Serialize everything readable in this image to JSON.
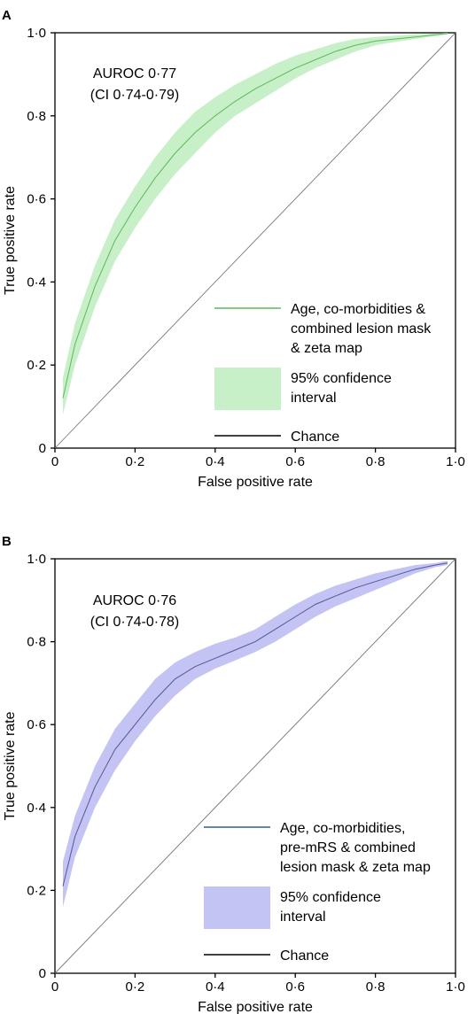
{
  "panels": [
    {
      "letter": "A"
    },
    {
      "letter": "B"
    }
  ],
  "chart_data": [
    {
      "type": "line",
      "panel": "A",
      "xlabel": "False positive rate",
      "ylabel": "True positive rate",
      "xlim": [
        0,
        1
      ],
      "ylim": [
        0,
        1
      ],
      "xticks": [
        "0",
        "0·2",
        "0·4",
        "0·6",
        "0·8",
        "1·0"
      ],
      "yticks": [
        "0",
        "0·2",
        "0·4",
        "0·6",
        "0·8",
        "1·0"
      ],
      "grid": false,
      "legend_position": "bottom-right",
      "annotation": [
        "AUROC 0·77",
        "(CI 0·74-0·79)"
      ],
      "series": [
        {
          "name": "Age, co-morbidities & combined lesion mask & zeta map",
          "color": "#5cb85c",
          "band_color": "#c8f0c8",
          "x": [
            0.02,
            0.05,
            0.1,
            0.15,
            0.2,
            0.25,
            0.3,
            0.35,
            0.4,
            0.45,
            0.5,
            0.55,
            0.6,
            0.65,
            0.7,
            0.75,
            0.8,
            0.85,
            0.9,
            0.95,
            0.98
          ],
          "y": [
            0.12,
            0.25,
            0.39,
            0.5,
            0.58,
            0.65,
            0.71,
            0.76,
            0.8,
            0.835,
            0.865,
            0.89,
            0.915,
            0.935,
            0.955,
            0.97,
            0.98,
            0.985,
            0.99,
            0.995,
            0.998
          ],
          "ci_lower": [
            0.08,
            0.2,
            0.34,
            0.45,
            0.53,
            0.6,
            0.66,
            0.71,
            0.76,
            0.8,
            0.83,
            0.86,
            0.89,
            0.915,
            0.935,
            0.955,
            0.97,
            0.978,
            0.985,
            0.992,
            0.996
          ],
          "ci_upper": [
            0.17,
            0.3,
            0.44,
            0.55,
            0.63,
            0.7,
            0.76,
            0.81,
            0.845,
            0.875,
            0.9,
            0.925,
            0.945,
            0.96,
            0.975,
            0.985,
            0.99,
            0.993,
            0.996,
            0.998,
            1.0
          ]
        },
        {
          "name": "Chance",
          "color": "#777777",
          "x": [
            0,
            1
          ],
          "y": [
            0,
            1
          ]
        }
      ],
      "legend": [
        {
          "kind": "line",
          "lines": [
            "Age, co-morbidities &",
            "combined lesion mask",
            "& zeta map"
          ],
          "color": "#5cb85c"
        },
        {
          "kind": "band",
          "lines": [
            "95% confidence",
            "interval"
          ],
          "color": "#c8f0c8"
        },
        {
          "kind": "line",
          "lines": [
            "Chance"
          ],
          "color": "#000000"
        }
      ]
    },
    {
      "type": "line",
      "panel": "B",
      "xlabel": "False positive rate",
      "ylabel": "True positive rate",
      "xlim": [
        0,
        1
      ],
      "ylim": [
        0,
        1
      ],
      "xticks": [
        "0",
        "0·2",
        "0·4",
        "0·6",
        "0·8",
        "1·0"
      ],
      "yticks": [
        "0",
        "0·2",
        "0·4",
        "0·6",
        "0·8",
        "1·0"
      ],
      "grid": false,
      "legend_position": "bottom-right",
      "annotation": [
        "AUROC 0·76",
        "(CI 0·74-0·78)"
      ],
      "series": [
        {
          "name": "Age, co-morbidities, pre-mRS & combined lesion mask & zeta map",
          "color": "#555599",
          "band_color": "#c4c4f4",
          "x": [
            0.02,
            0.05,
            0.1,
            0.15,
            0.2,
            0.25,
            0.3,
            0.35,
            0.4,
            0.45,
            0.5,
            0.55,
            0.6,
            0.65,
            0.7,
            0.75,
            0.8,
            0.85,
            0.9,
            0.95,
            0.98
          ],
          "y": [
            0.21,
            0.33,
            0.45,
            0.54,
            0.6,
            0.66,
            0.71,
            0.74,
            0.76,
            0.78,
            0.8,
            0.83,
            0.86,
            0.89,
            0.91,
            0.93,
            0.945,
            0.96,
            0.975,
            0.985,
            0.99
          ],
          "ci_lower": [
            0.16,
            0.28,
            0.4,
            0.49,
            0.56,
            0.62,
            0.67,
            0.71,
            0.735,
            0.755,
            0.775,
            0.8,
            0.83,
            0.86,
            0.885,
            0.905,
            0.925,
            0.945,
            0.965,
            0.98,
            0.985
          ],
          "ci_upper": [
            0.27,
            0.38,
            0.5,
            0.59,
            0.65,
            0.71,
            0.75,
            0.775,
            0.795,
            0.81,
            0.83,
            0.86,
            0.89,
            0.915,
            0.935,
            0.95,
            0.965,
            0.975,
            0.985,
            0.99,
            0.995
          ]
        },
        {
          "name": "Chance",
          "color": "#777777",
          "x": [
            0,
            1
          ],
          "y": [
            0,
            1
          ]
        }
      ],
      "legend": [
        {
          "kind": "line",
          "lines": [
            "Age, co-morbidities,",
            "pre-mRS & combined",
            "lesion mask & zeta map"
          ],
          "color": "#2e5a9c"
        },
        {
          "kind": "band",
          "lines": [
            "95% confidence",
            "interval"
          ],
          "color": "#c4c4f4"
        },
        {
          "kind": "line",
          "lines": [
            "Chance"
          ],
          "color": "#000000"
        }
      ]
    }
  ]
}
